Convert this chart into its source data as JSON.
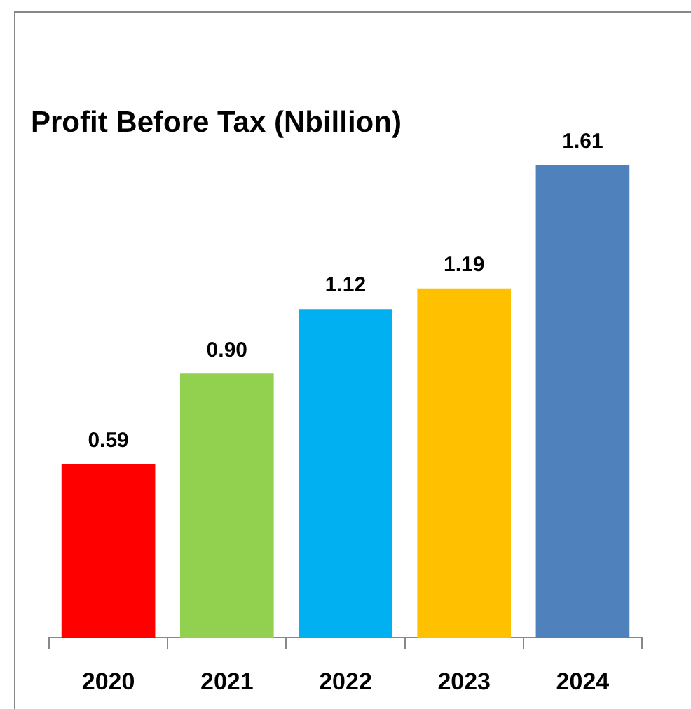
{
  "chart_data": {
    "type": "bar",
    "title": "Profit Before Tax (Nbillion)",
    "categories": [
      "2020",
      "2021",
      "2022",
      "2023",
      "2024"
    ],
    "values": [
      0.59,
      0.9,
      1.12,
      1.19,
      1.61
    ],
    "colors": [
      "#ff0000",
      "#92d050",
      "#00b0f0",
      "#ffc000",
      "#4f81bd"
    ],
    "value_labels": [
      "0.59",
      "0.90",
      "1.12",
      "1.19",
      "1.61"
    ]
  }
}
